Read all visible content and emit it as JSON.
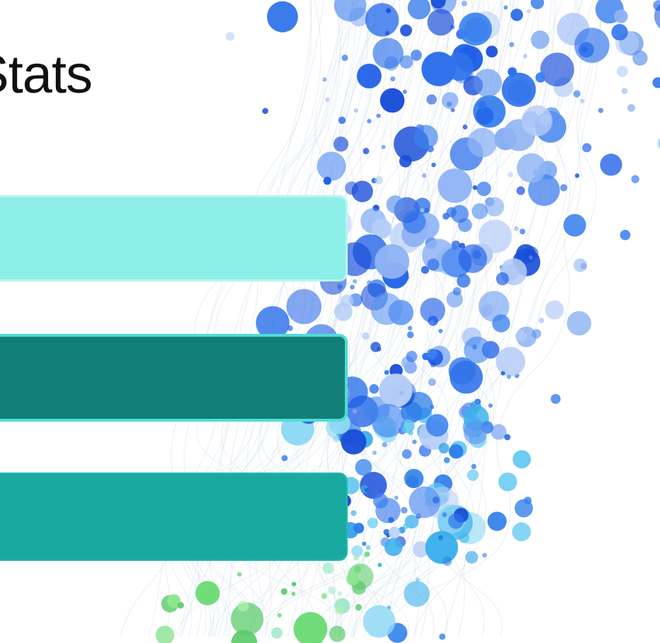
{
  "header": {
    "title": "Stats"
  }
}
